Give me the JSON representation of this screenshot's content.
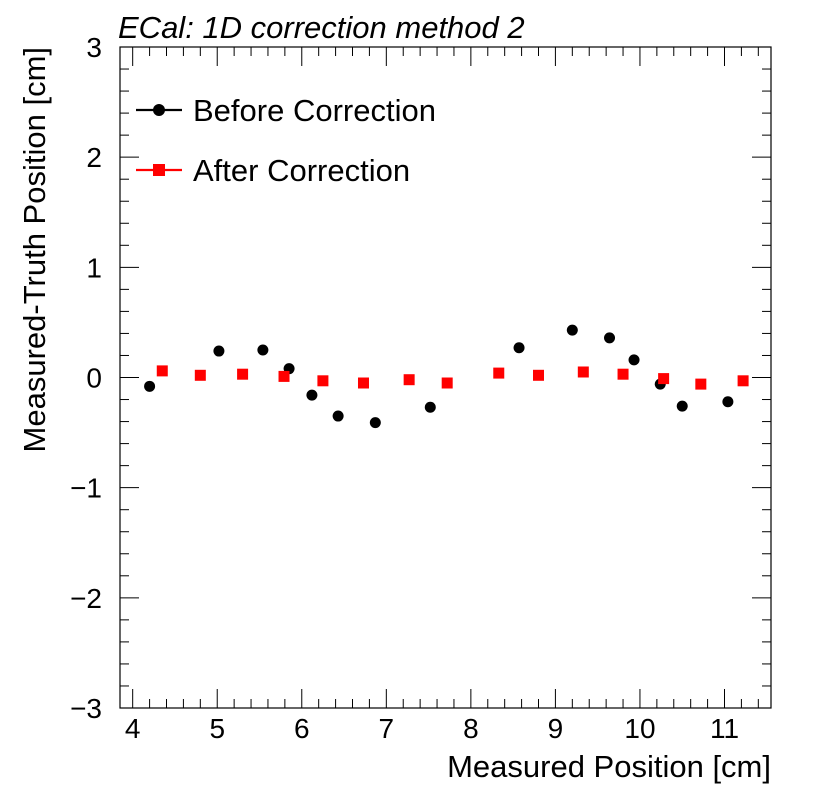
{
  "chart_data": {
    "type": "scatter",
    "title": "ECal: 1D correction method 2",
    "xlabel": "Measured Position [cm]",
    "ylabel": "Measured-Truth Position [cm]",
    "xlim": [
      3.85,
      11.55
    ],
    "ylim": [
      -3,
      3
    ],
    "x_ticks": [
      "4",
      "5",
      "6",
      "7",
      "8",
      "9",
      "10",
      "11"
    ],
    "y_ticks": [
      "−3",
      "−2",
      "−1",
      "0",
      "1",
      "2",
      "3"
    ],
    "grid": false,
    "legend_position": "top-left",
    "series": [
      {
        "name": "Before Correction",
        "color": "#000000",
        "marker": "circle",
        "x": [
          4.2,
          5.02,
          5.54,
          5.85,
          6.12,
          6.43,
          6.87,
          7.52,
          8.57,
          9.2,
          9.64,
          9.93,
          10.24,
          10.5,
          11.04
        ],
        "y": [
          -0.08,
          0.24,
          0.25,
          0.08,
          -0.16,
          -0.35,
          -0.41,
          -0.27,
          0.27,
          0.43,
          0.36,
          0.16,
          -0.06,
          -0.26,
          -0.22
        ]
      },
      {
        "name": "After Correction",
        "color": "#ff0000",
        "marker": "square",
        "x": [
          4.35,
          4.8,
          5.3,
          5.79,
          6.25,
          6.73,
          7.27,
          7.72,
          8.33,
          8.8,
          9.33,
          9.8,
          10.28,
          10.72,
          11.22
        ],
        "y": [
          0.06,
          0.02,
          0.03,
          0.01,
          -0.03,
          -0.05,
          -0.02,
          -0.05,
          0.04,
          0.02,
          0.05,
          0.03,
          -0.01,
          -0.06,
          -0.03
        ]
      }
    ]
  }
}
